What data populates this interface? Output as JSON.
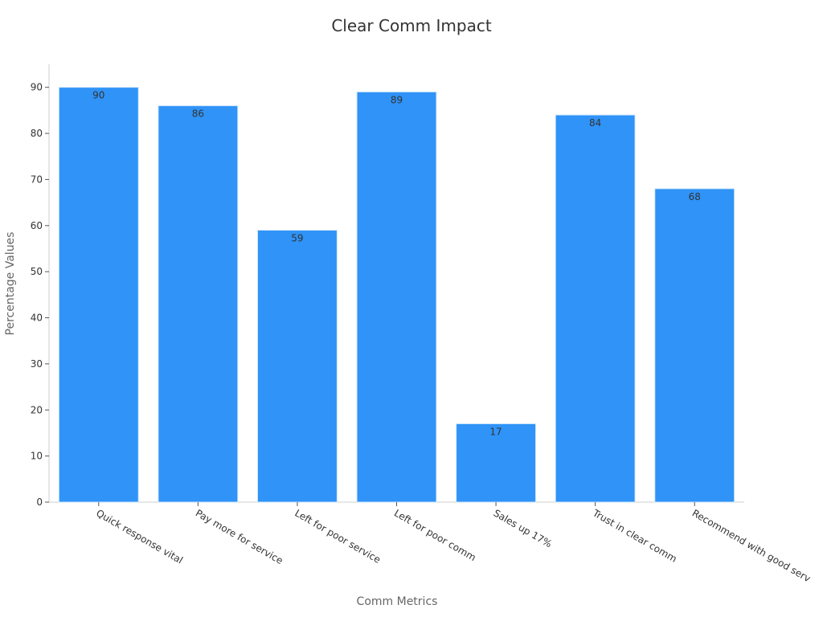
{
  "chart_data": {
    "type": "bar",
    "title": "Clear Comm Impact",
    "xlabel": "Comm Metrics",
    "ylabel": "Percentage Values",
    "categories": [
      "Quick response vital",
      "Pay more for service",
      "Left for poor service",
      "Left for poor comm",
      "Sales up 17%",
      "Trust in clear comm",
      "Recommend with good serv"
    ],
    "values": [
      90,
      86,
      59,
      89,
      17,
      84,
      68
    ],
    "ylim": [
      0,
      95
    ],
    "yticks": [
      0,
      10,
      20,
      30,
      40,
      50,
      60,
      70,
      80,
      90
    ],
    "bar_color": "#2f93f7",
    "grid": false,
    "legend": "none"
  }
}
